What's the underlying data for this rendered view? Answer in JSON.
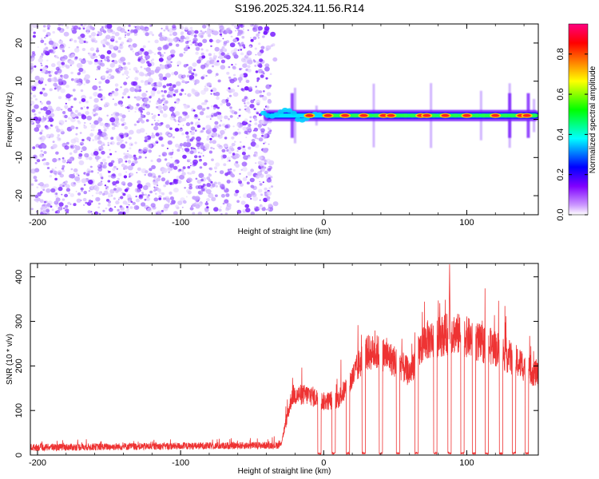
{
  "title": "S196.2025.324.11.56.R14",
  "chart_data": [
    {
      "type": "heatmap",
      "name": "spectrogram",
      "xlabel": "Height of straight line (km)",
      "ylabel": "Frequency (Hz)",
      "xlim": [
        -205,
        150
      ],
      "ylim": [
        -25,
        25
      ],
      "xticks": [
        -200,
        -100,
        0,
        100
      ],
      "yticks": [
        -20,
        -10,
        0,
        10,
        20
      ],
      "noise_region": [
        -205,
        -32
      ],
      "signal_band": {
        "x_start": -42,
        "x_end": 150,
        "frequency": 1
      },
      "colorbar": {
        "label": "Normalized spectral amplitude",
        "range": [
          0,
          0.95
        ],
        "ticks": [
          "0.0",
          "0.2",
          "0.4",
          "0.6",
          "0.8"
        ],
        "colors": [
          "#ffffff",
          "#cc99ff",
          "#8000ff",
          "#0000ff",
          "#00ffff",
          "#00ff00",
          "#ffff00",
          "#ff8000",
          "#ff0000",
          "#ff0080"
        ]
      },
      "hotspots": [
        -10,
        3,
        15,
        28,
        42,
        47,
        68,
        72,
        85,
        100,
        120,
        138,
        142
      ]
    },
    {
      "type": "line",
      "name": "snr",
      "xlabel": "Height of straight line (km)",
      "ylabel": "SNR (10 * v/v)",
      "xlim": [
        -205,
        150
      ],
      "ylim": [
        0,
        430
      ],
      "xticks": [
        -200,
        -100,
        0,
        100
      ],
      "yticks": [
        0,
        100,
        200,
        300,
        400
      ],
      "color": "#ee3333",
      "series_profile": {
        "x": [
          -205,
          -30,
          -22,
          -10,
          0,
          10,
          18,
          25,
          30,
          40,
          50,
          60,
          70,
          80,
          90,
          100,
          110,
          120,
          130,
          140,
          150
        ],
        "level": [
          17,
          22,
          135,
          135,
          120,
          125,
          160,
          205,
          230,
          230,
          210,
          185,
          255,
          265,
          275,
          265,
          250,
          240,
          220,
          200,
          180
        ]
      },
      "dropouts": [
        -3,
        7,
        17,
        28,
        40,
        52,
        65,
        78,
        88,
        97,
        105,
        114,
        124,
        133,
        142
      ]
    }
  ]
}
